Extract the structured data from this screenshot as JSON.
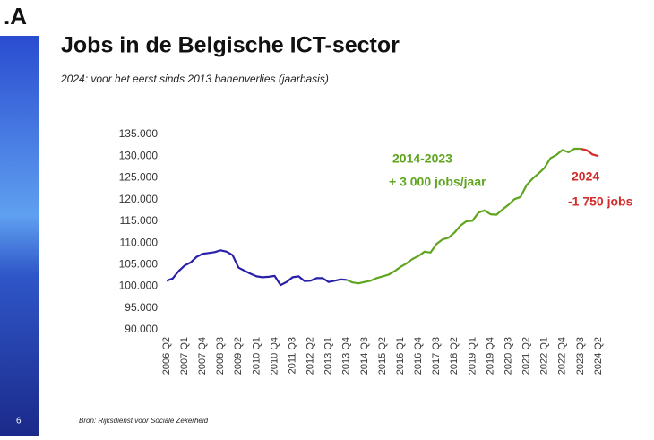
{
  "slide": {
    "logo": ".A",
    "page_number": "6",
    "source": "Bron:  Rijksdienst voor Sociale Zekerheid"
  },
  "chart_data": {
    "type": "line",
    "title": "Jobs in de Belgische ICT-sector",
    "subtitle": "2024: voor het eerst sinds 2013 banenverlies (jaarbasis)",
    "annotations": [
      "2014-2023",
      "+ 3 000 jobs/jaar",
      "2024",
      "-1 750 jobs"
    ],
    "categories": [
      "2006 Q2",
      null,
      null,
      "2007 Q1",
      null,
      null,
      "2007 Q4",
      null,
      null,
      "2008 Q3",
      null,
      null,
      "2009 Q2",
      null,
      null,
      "2010 Q1",
      null,
      null,
      "2010 Q4",
      null,
      null,
      "2011 Q3",
      null,
      null,
      "2012 Q2",
      null,
      null,
      "2013 Q1",
      null,
      null,
      "2013 Q4",
      null,
      null,
      "2014 Q3",
      null,
      null,
      "2015 Q2",
      null,
      null,
      "2016 Q1",
      null,
      null,
      "2016 Q4",
      null,
      null,
      "2017 Q3",
      null,
      null,
      "2018 Q2",
      null,
      null,
      "2019 Q1",
      null,
      null,
      "2019 Q4",
      null,
      null,
      "2020 Q3",
      null,
      null,
      "2021 Q2",
      null,
      null,
      "2022 Q1",
      null,
      null,
      "2022 Q4",
      null,
      null,
      "2023 Q3",
      null,
      null,
      "2024 Q2"
    ],
    "series": [
      {
        "color": "#2a1fa8",
        "values": [
          101300,
          101800,
          103500,
          104800,
          105500,
          106800,
          107500,
          107700,
          107900,
          108300,
          108000,
          107200,
          104300,
          103600,
          102900,
          102300,
          102100,
          102200,
          102400,
          100300,
          101000,
          102100,
          102300,
          101200,
          101300,
          101900,
          101900,
          101000,
          101300,
          101600,
          101500,
          null,
          null,
          null,
          null,
          null,
          null,
          null,
          null,
          null,
          null,
          null,
          null,
          null,
          null,
          null,
          null,
          null,
          null,
          null,
          null,
          null,
          null,
          null,
          null,
          null,
          null,
          null,
          null,
          null,
          null,
          null,
          null,
          null,
          null,
          null,
          null,
          null,
          null,
          null,
          null,
          null,
          null
        ]
      },
      {
        "color": "#5fa51f",
        "values": [
          null,
          null,
          null,
          null,
          null,
          null,
          null,
          null,
          null,
          null,
          null,
          null,
          null,
          null,
          null,
          null,
          null,
          null,
          null,
          null,
          null,
          null,
          null,
          null,
          null,
          null,
          null,
          null,
          null,
          null,
          101500,
          100900,
          100700,
          101000,
          101300,
          101900,
          102300,
          102700,
          103500,
          104500,
          105300,
          106300,
          107000,
          108000,
          107800,
          109800,
          110800,
          111200,
          112400,
          114000,
          115000,
          115100,
          117000,
          117500,
          116600,
          116500,
          117700,
          118800,
          120100,
          120600,
          123300,
          124800,
          126000,
          127300,
          129500,
          130300,
          131400,
          130900,
          131700,
          131700,
          null,
          null,
          null
        ]
      },
      {
        "color": "#d42a2a",
        "values": [
          null,
          null,
          null,
          null,
          null,
          null,
          null,
          null,
          null,
          null,
          null,
          null,
          null,
          null,
          null,
          null,
          null,
          null,
          null,
          null,
          null,
          null,
          null,
          null,
          null,
          null,
          null,
          null,
          null,
          null,
          null,
          null,
          null,
          null,
          null,
          null,
          null,
          null,
          null,
          null,
          null,
          null,
          null,
          null,
          null,
          null,
          null,
          null,
          null,
          null,
          null,
          null,
          null,
          null,
          null,
          null,
          null,
          null,
          null,
          null,
          null,
          null,
          null,
          null,
          null,
          null,
          null,
          null,
          null,
          131700,
          131400,
          130400,
          130000
        ]
      }
    ],
    "ylim": [
      90000,
      135000
    ],
    "yticks": [
      {
        "value": 90000,
        "label": "90.000"
      },
      {
        "value": 95000,
        "label": "95.000"
      },
      {
        "value": 100000,
        "label": "100.000"
      },
      {
        "value": 105000,
        "label": "105.000"
      },
      {
        "value": 110000,
        "label": "110.000"
      },
      {
        "value": 115000,
        "label": "115.000"
      },
      {
        "value": 120000,
        "label": "120.000"
      },
      {
        "value": 125000,
        "label": "125.000"
      },
      {
        "value": 130000,
        "label": "130.000"
      },
      {
        "value": 135000,
        "label": "135.000"
      }
    ],
    "grid": false
  }
}
